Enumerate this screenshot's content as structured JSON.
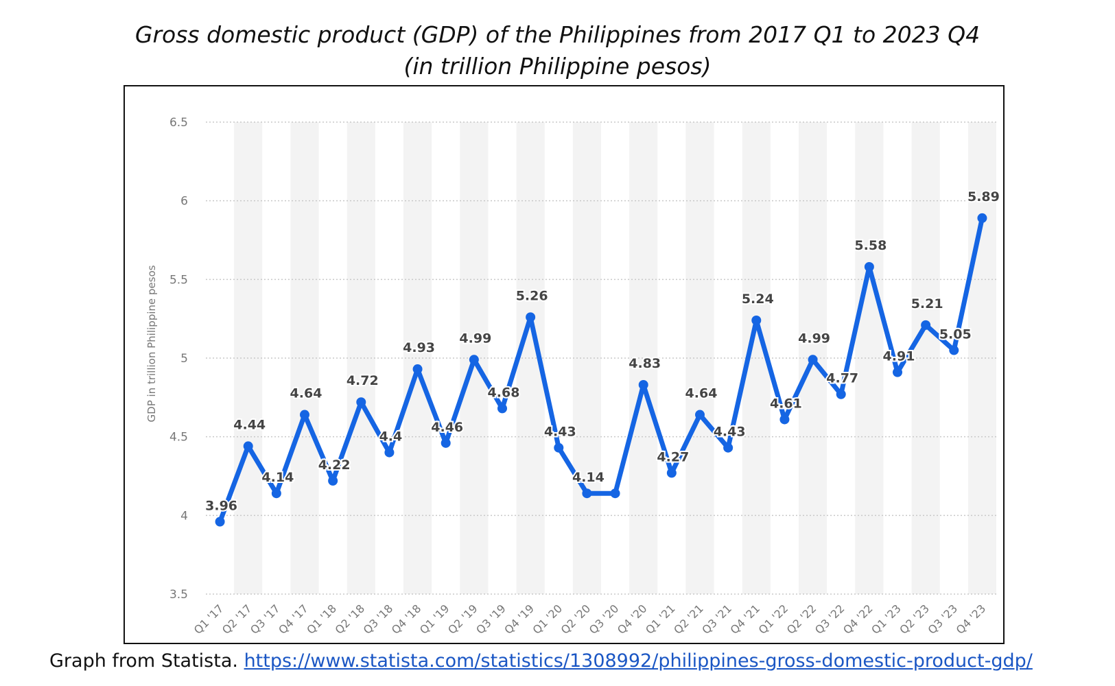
{
  "title_line1": "Gross domestic product (GDP) of the Philippines from 2017 Q1 to 2023 Q4",
  "title_line2": "(in trillion Philippine pesos)",
  "footer_text": "Graph from Statista.",
  "footer_link": "https://www.statista.com/statistics/1308992/philippines-gross-domestic-product-gdp/",
  "colors": {
    "line": "#1565e3",
    "grid": "#c8c8c8",
    "band": "#f3f3f3",
    "tick_text": "#777777",
    "value_text": "#444444"
  },
  "chart_data": {
    "type": "line",
    "title": "",
    "xlabel": "",
    "ylabel": "GDP in trillion Philippine pesos",
    "ylim": [
      3.5,
      6.5
    ],
    "yticks": [
      3.5,
      4,
      4.5,
      5,
      5.5,
      6,
      6.5
    ],
    "grid": true,
    "categories": [
      "Q1 '17",
      "Q2 '17",
      "Q3 '17",
      "Q4 '17",
      "Q1 '18",
      "Q2 '18",
      "Q3 '18",
      "Q4 '18",
      "Q1 '19",
      "Q2 '19",
      "Q3 '19",
      "Q4 '19",
      "Q1 '20",
      "Q2 '20",
      "Q3 '20",
      "Q4 '20",
      "Q1 '21",
      "Q2 '21",
      "Q3 '21",
      "Q4 '21",
      "Q1 '22",
      "Q2 '22",
      "Q3 '22",
      "Q4 '22",
      "Q1 '23",
      "Q2 '23",
      "Q3 '23",
      "Q4 '23"
    ],
    "values": [
      3.96,
      4.44,
      4.14,
      4.64,
      4.22,
      4.72,
      4.4,
      4.93,
      4.46,
      4.99,
      4.68,
      5.26,
      4.43,
      4.14,
      4.14,
      4.83,
      4.27,
      4.64,
      4.43,
      5.24,
      4.61,
      4.99,
      4.77,
      5.58,
      4.91,
      5.21,
      5.05,
      5.89
    ],
    "value_labels": [
      "3.96",
      "4.44",
      "4.14",
      "4.64",
      "4.22",
      "4.72",
      "4.4",
      "4.93",
      "4.46",
      "4.99",
      "4.68",
      "5.26",
      "4.43",
      "4.14",
      "",
      "4.83",
      "4.27",
      "4.64",
      "4.43",
      "5.24",
      "4.61",
      "4.99",
      "4.77",
      "5.58",
      "4.91",
      "5.21",
      "5.05",
      "5.89"
    ]
  }
}
